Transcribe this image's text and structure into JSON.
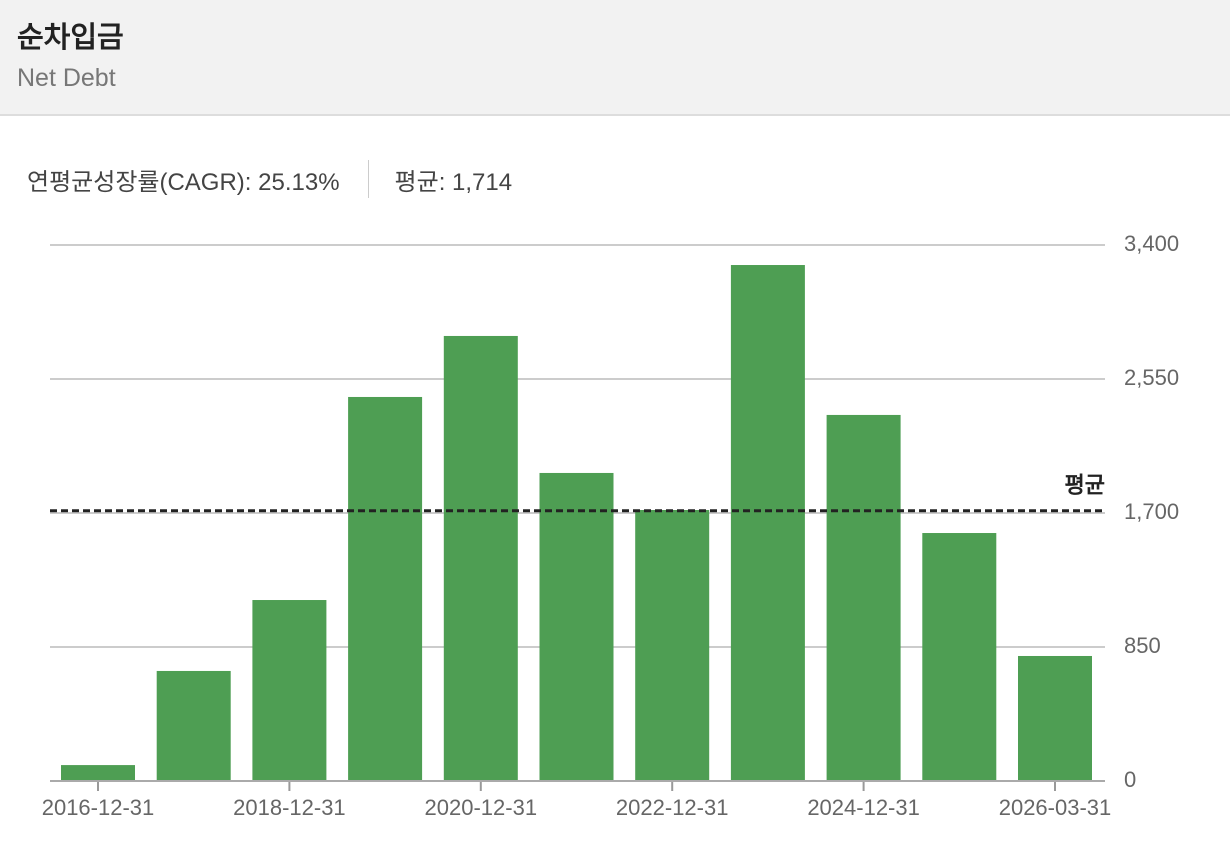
{
  "header": {
    "title": "순차입금",
    "subtitle": "Net Debt"
  },
  "stats": [
    "연평균성장률(CAGR): 25.13%",
    "평균: 1,714"
  ],
  "chart_data": {
    "type": "bar",
    "color": "#4e9e53",
    "categories": [
      "2016-12-31",
      null,
      "2018-12-31",
      null,
      "2020-12-31",
      null,
      "2022-12-31",
      null,
      "2024-12-31",
      null,
      "2026-03-31"
    ],
    "values": [
      101,
      698,
      1148,
      2436,
      2823,
      1954,
      1719,
      3273,
      2322,
      1573,
      793
    ],
    "ylim": [
      0,
      3400
    ],
    "yticks": [
      0,
      850,
      {
        "value": 1700,
        "label": "1,700"
      },
      {
        "value": 2550,
        "label": "2,550"
      },
      {
        "value": 3400,
        "label": "3,400"
      }
    ],
    "grid": true,
    "reference_line": {
      "value": 1714,
      "label": "평균"
    }
  }
}
